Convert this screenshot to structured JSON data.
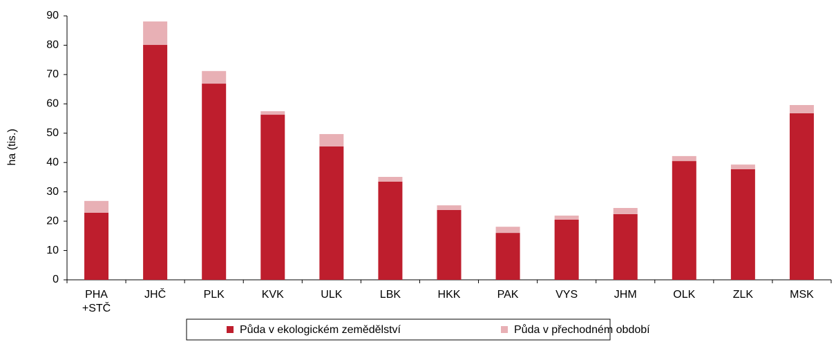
{
  "chart_data": {
    "type": "bar",
    "stacked": true,
    "y_label": "ha (tis.)",
    "categories": [
      "PHA +STČ",
      "JHČ",
      "PLK",
      "KVK",
      "ULK",
      "LBK",
      "HKK",
      "PAK",
      "VYS",
      "JHM",
      "OLK",
      "ZLK",
      "MSK"
    ],
    "series": [
      {
        "name": "Půda v ekologickém zemědělství",
        "color": "#be1e2d",
        "values": [
          22.9,
          80.1,
          66.9,
          56.3,
          45.5,
          33.5,
          23.8,
          16.0,
          20.5,
          22.4,
          40.5,
          37.7,
          56.8
        ]
      },
      {
        "name": "Půda v přechodném období",
        "color": "#e8b0b5",
        "values": [
          4.0,
          8.0,
          4.3,
          1.2,
          4.2,
          1.6,
          1.6,
          2.1,
          1.4,
          2.1,
          1.7,
          1.6,
          2.8
        ]
      }
    ],
    "ylim": [
      0,
      90
    ],
    "yticks": [
      0,
      10,
      20,
      30,
      40,
      50,
      60,
      70,
      80,
      90
    ],
    "legend": "bottom"
  }
}
